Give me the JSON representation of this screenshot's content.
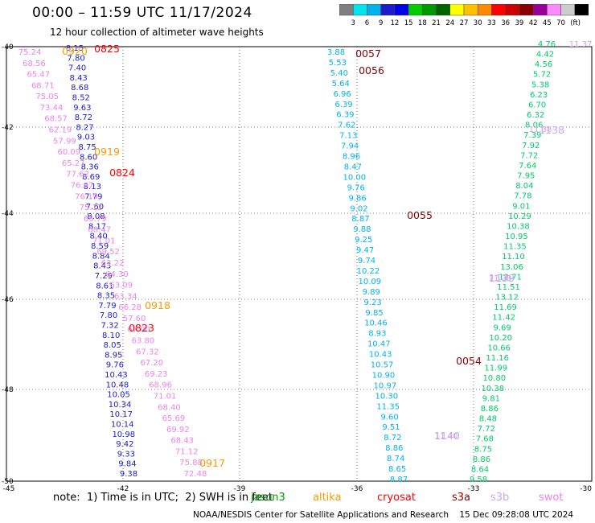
{
  "header": {
    "title": "00:00 – 11:59 UTC 11/17/2024",
    "subtitle": "12 hour collection of altimeter wave heights"
  },
  "color_scale": {
    "ticks": [
      "3",
      "6",
      "9",
      "12",
      "15",
      "18",
      "21",
      "24",
      "27",
      "30",
      "33",
      "36",
      "39",
      "42",
      "45",
      "70"
    ],
    "unit": "(ft)",
    "colors": [
      "#7f7f7f",
      "#00e5ee",
      "#00b2ee",
      "#1c1ccc",
      "#0000e8",
      "#00cd00",
      "#009900",
      "#006400",
      "#ffff00",
      "#ffc000",
      "#ff8800",
      "#ff0000",
      "#cc0000",
      "#8b0000",
      "#990099",
      "#ff88ff",
      "#cccccc",
      "#000000"
    ]
  },
  "axes": {
    "lat_labels": [
      "-40",
      "-42",
      "-44",
      "-46",
      "-48",
      "-50"
    ],
    "lon_labels": [
      "-45",
      "-42",
      "-39",
      "-36",
      "-33",
      "-30"
    ]
  },
  "groups": [
    {
      "color": "#1c1ccc",
      "values": [
        "8.15",
        "7.80",
        "7.40",
        "8.43",
        "8.68",
        "8.52",
        "9.63",
        "8.72",
        "8.27",
        "9.03",
        "8.75",
        "8.60",
        "8.36",
        "8.69",
        "8.13",
        "7.79",
        "7.60",
        "8.08",
        "8.17",
        "8.40",
        "8.59",
        "8.84",
        "8.43",
        "7.29",
        "8.61",
        "8.35",
        "7.79",
        "7.80",
        "7.32",
        "8.10",
        "8.05",
        "8.95",
        "9.76",
        "10.43",
        "10.48",
        "10.05",
        "10.34",
        "10.17",
        "10.14",
        "10.98",
        "9.42",
        "9.33",
        "9.84",
        "9.38"
      ]
    },
    {
      "color": "#ee82ee",
      "values": [
        "75.24",
        "68.56",
        "65.47",
        "68.71",
        "75.05",
        "73.44",
        "68.57",
        "62.19",
        "57.99",
        "60.09",
        "65.27",
        "77.62",
        "76.97",
        "76.19",
        "75.12",
        "66.79",
        "68.47",
        "71.01",
        "69.52",
        "63.22",
        "64.30",
        "63.09",
        "63.34",
        "66.28",
        "57.60",
        "67.00",
        "63.80",
        "67.32",
        "67.20",
        "69.23",
        "68.96",
        "71.01",
        "68.40",
        "65.69",
        "69.92",
        "68.43",
        "71.12",
        "75.88",
        "72.48"
      ]
    },
    {
      "color": "#00b2ee",
      "values": [
        "3.88",
        "5.53",
        "5.40",
        "5.64",
        "6.96",
        "6.39",
        "6.39",
        "7.62",
        "7.13",
        "7.94",
        "8.96",
        "8.47",
        "10.00",
        "9.76",
        "9.86",
        "9.02",
        "8.87",
        "9.88",
        "9.25",
        "9.47",
        "9.74",
        "10.22",
        "10.09",
        "9.89",
        "9.23",
        "9.85",
        "10.46",
        "8.93",
        "10.47",
        "10.43",
        "10.57",
        "10.90",
        "10.97",
        "10.30",
        "11.35",
        "9.60",
        "9.51",
        "8.72",
        "8.86",
        "8.74",
        "8.65",
        "8.87"
      ]
    },
    {
      "color": "#00cc66",
      "values": [
        "4.76",
        "4.42",
        "4.56",
        "5.72",
        "5.38",
        "6.23",
        "6.70",
        "6.32",
        "8.06",
        "7.39",
        "7.92",
        "7.72",
        "7.64",
        "7.95",
        "8.04",
        "7.78",
        "9.01",
        "10.29",
        "10.38",
        "10.95",
        "11.35",
        "11.10",
        "13.06",
        "12.71",
        "11.51",
        "13.12",
        "11.69",
        "11.42",
        "9.69",
        "10.20",
        "10.66",
        "11.16",
        "11.99",
        "10.80",
        "10.38",
        "9.81",
        "8.86",
        "8.48",
        "7.72",
        "7.68",
        "8.75",
        "8.86",
        "8.64",
        "9.58"
      ]
    },
    {
      "color": "#d1a0ee",
      "values": [
        "11.37",
        "11.38",
        "11.39",
        "11.40"
      ]
    }
  ],
  "pass_labels": [
    {
      "text": "0825",
      "color": "#ff0000"
    },
    {
      "text": "0920",
      "color": "#ff9900"
    },
    {
      "text": "0919",
      "color": "#ff9900"
    },
    {
      "text": "0824",
      "color": "#ff0000"
    },
    {
      "text": "0918",
      "color": "#ff9900"
    },
    {
      "text": "0823",
      "color": "#ff0000"
    },
    {
      "text": "0917",
      "color": "#ff9900"
    },
    {
      "text": "0057",
      "color": "#8b0000"
    },
    {
      "text": "0056",
      "color": "#8b0000"
    },
    {
      "text": "0055",
      "color": "#8b0000"
    },
    {
      "text": "0054",
      "color": "#8b0000"
    },
    {
      "text": "1138",
      "color": "#c8a8ee"
    },
    {
      "text": "1139",
      "color": "#c8a8ee"
    },
    {
      "text": "1140",
      "color": "#c8a8ee"
    }
  ],
  "note": "note:  1) Time is in UTC;  2) SWH is in feet",
  "satellites": [
    {
      "name": "jason3",
      "color": "#009900"
    },
    {
      "name": "altika",
      "color": "#ff9900"
    },
    {
      "name": "cryosat",
      "color": "#ff0000"
    },
    {
      "name": "s3a",
      "color": "#8b0000"
    },
    {
      "name": "s3b",
      "color": "#c8a8ee"
    },
    {
      "name": "swot",
      "color": "#ee82ee"
    }
  ],
  "footer": "NOAA/NESDIS Center for Satellite Applications and Research    15 Dec 09:28:08 UTC 2024"
}
